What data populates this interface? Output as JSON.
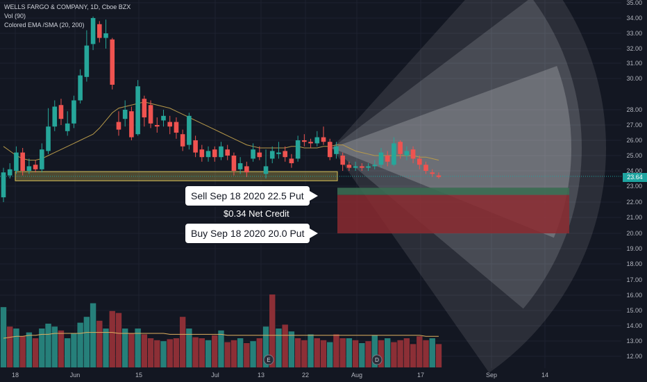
{
  "header": {
    "symbol_line": "WELLS FARGO & COMPANY, 1D, Cboe BZX",
    "volume_line": "Vol (90)",
    "indicator_line": "Colored EMA /SMA (20, 200)"
  },
  "annotations": {
    "sell": "Sell Sep 18 2020 22.5 Put",
    "credit": "$0.34 Net Credit",
    "buy": "Buy Sep 18 2020 20.0 Put"
  },
  "last_price": "23.64",
  "colors": {
    "background": "#131722",
    "up": "#26a69a",
    "down": "#ef5350",
    "up_volume": "#26807a",
    "down_volume": "#8c2f36",
    "ma": "#b89a4a",
    "support_zone": "#d8c15a",
    "sell_zone": "#3b6b52",
    "buy_zone": "#8b2a30"
  },
  "chart_data": {
    "type": "candlestick",
    "y_axis_ticks": [
      "35.00",
      "34.00",
      "33.00",
      "32.00",
      "31.00",
      "30.00",
      "28.00",
      "27.00",
      "26.00",
      "25.00",
      "24.00",
      "23.00",
      "22.00",
      "21.00",
      "20.00",
      "19.00",
      "18.00",
      "17.00",
      "16.00",
      "15.00",
      "14.00",
      "13.00",
      "12.00"
    ],
    "x_axis_ticks": [
      "18",
      "Jun",
      "15",
      "Jul",
      "13",
      "22",
      "Aug",
      "17",
      "Sep",
      "14"
    ],
    "event_markers": [
      "E",
      "D"
    ],
    "moving_average": [
      25.6,
      25.3,
      25.0,
      24.8,
      24.7,
      24.7,
      24.8,
      25.0,
      25.2,
      25.4,
      25.6,
      25.8,
      26.0,
      26.2,
      26.4,
      26.8,
      27.3,
      27.8,
      28.1,
      28.2,
      28.3,
      28.4,
      28.5,
      28.4,
      28.3,
      28.2,
      28.1,
      27.9,
      27.7,
      27.5,
      27.3,
      27.1,
      26.9,
      26.7,
      26.5,
      26.3,
      26.1,
      25.9,
      25.7,
      25.6,
      25.5,
      25.5,
      25.5,
      25.5,
      25.5,
      25.6,
      25.6,
      25.5,
      25.5,
      25.5,
      25.6,
      25.6,
      25.7,
      25.7,
      25.5,
      25.3,
      25.2,
      25.1,
      25.0,
      25.0,
      25.0,
      25.0,
      25.0,
      25.0,
      25.0,
      24.9,
      24.9,
      24.8,
      24.7
    ],
    "candles": [
      {
        "o": 22.3,
        "c": 23.9,
        "h": 24.2,
        "l": 22.0
      },
      {
        "o": 23.7,
        "c": 24.1,
        "h": 24.5,
        "l": 23.5
      },
      {
        "o": 24.0,
        "c": 25.2,
        "h": 25.6,
        "l": 23.8
      },
      {
        "o": 25.2,
        "c": 24.0,
        "h": 25.5,
        "l": 23.7
      },
      {
        "o": 24.0,
        "c": 24.3,
        "h": 24.8,
        "l": 23.8
      },
      {
        "o": 24.4,
        "c": 24.1,
        "h": 24.7,
        "l": 23.9
      },
      {
        "o": 24.1,
        "c": 25.4,
        "h": 25.8,
        "l": 23.9
      },
      {
        "o": 25.3,
        "c": 26.9,
        "h": 28.1,
        "l": 25.1
      },
      {
        "o": 26.9,
        "c": 28.2,
        "h": 28.6,
        "l": 26.6
      },
      {
        "o": 28.3,
        "c": 27.4,
        "h": 28.7,
        "l": 27.0
      },
      {
        "o": 26.6,
        "c": 27.1,
        "h": 27.9,
        "l": 26.3
      },
      {
        "o": 27.1,
        "c": 28.6,
        "h": 28.9,
        "l": 26.8
      },
      {
        "o": 28.6,
        "c": 30.2,
        "h": 30.6,
        "l": 28.4
      },
      {
        "o": 30.1,
        "c": 32.2,
        "h": 33.2,
        "l": 29.8
      },
      {
        "o": 32.3,
        "c": 34.0,
        "h": 34.1,
        "l": 31.9
      },
      {
        "o": 33.6,
        "c": 32.7,
        "h": 33.8,
        "l": 32.4
      },
      {
        "o": 32.7,
        "c": 33.0,
        "h": 33.9,
        "l": 32.0
      },
      {
        "o": 32.6,
        "c": 29.6,
        "h": 32.7,
        "l": 29.3
      },
      {
        "o": 27.2,
        "c": 26.7,
        "h": 27.9,
        "l": 26.3
      },
      {
        "o": 27.4,
        "c": 28.0,
        "h": 28.6,
        "l": 26.9
      },
      {
        "o": 27.9,
        "c": 26.2,
        "h": 28.2,
        "l": 26.0
      },
      {
        "o": 26.4,
        "c": 29.5,
        "h": 29.9,
        "l": 26.3
      },
      {
        "o": 28.7,
        "c": 27.5,
        "h": 28.9,
        "l": 26.9
      },
      {
        "o": 28.3,
        "c": 27.1,
        "h": 28.6,
        "l": 26.8
      },
      {
        "o": 27.0,
        "c": 26.9,
        "h": 27.5,
        "l": 26.5
      },
      {
        "o": 27.3,
        "c": 27.6,
        "h": 28.0,
        "l": 26.9
      },
      {
        "o": 27.2,
        "c": 26.9,
        "h": 27.6,
        "l": 26.4
      },
      {
        "o": 27.2,
        "c": 26.5,
        "h": 27.5,
        "l": 26.1
      },
      {
        "o": 26.4,
        "c": 25.6,
        "h": 26.7,
        "l": 25.3
      },
      {
        "o": 25.7,
        "c": 27.6,
        "h": 27.8,
        "l": 25.4
      },
      {
        "o": 26.0,
        "c": 25.2,
        "h": 26.3,
        "l": 24.9
      },
      {
        "o": 25.4,
        "c": 24.9,
        "h": 25.7,
        "l": 24.6
      },
      {
        "o": 24.9,
        "c": 25.3,
        "h": 25.6,
        "l": 24.6
      },
      {
        "o": 25.4,
        "c": 24.9,
        "h": 25.6,
        "l": 24.6
      },
      {
        "o": 24.9,
        "c": 25.6,
        "h": 25.9,
        "l": 24.7
      },
      {
        "o": 25.4,
        "c": 25.0,
        "h": 25.7,
        "l": 24.7
      },
      {
        "o": 25.0,
        "c": 24.0,
        "h": 25.2,
        "l": 23.7
      },
      {
        "o": 24.1,
        "c": 24.5,
        "h": 24.9,
        "l": 23.8
      },
      {
        "o": 24.3,
        "c": 23.9,
        "h": 24.6,
        "l": 23.6
      },
      {
        "o": 24.8,
        "c": 25.4,
        "h": 25.8,
        "l": 24.6
      },
      {
        "o": 25.2,
        "c": 24.9,
        "h": 25.6,
        "l": 24.7
      },
      {
        "o": 23.8,
        "c": 24.3,
        "h": 25.4,
        "l": 23.5
      },
      {
        "o": 24.8,
        "c": 25.3,
        "h": 25.6,
        "l": 24.5
      },
      {
        "o": 25.1,
        "c": 25.2,
        "h": 25.9,
        "l": 24.8
      },
      {
        "o": 25.3,
        "c": 24.9,
        "h": 25.6,
        "l": 24.6
      },
      {
        "o": 24.8,
        "c": 24.5,
        "h": 25.1,
        "l": 24.2
      },
      {
        "o": 24.8,
        "c": 26.0,
        "h": 26.3,
        "l": 24.6
      },
      {
        "o": 26.0,
        "c": 25.9,
        "h": 26.4,
        "l": 25.6
      },
      {
        "o": 25.9,
        "c": 25.8,
        "h": 26.1,
        "l": 25.5
      },
      {
        "o": 25.8,
        "c": 26.2,
        "h": 26.6,
        "l": 25.6
      },
      {
        "o": 26.2,
        "c": 25.9,
        "h": 26.9,
        "l": 25.7
      },
      {
        "o": 25.9,
        "c": 24.9,
        "h": 26.1,
        "l": 24.7
      },
      {
        "o": 25.1,
        "c": 25.6,
        "h": 25.9,
        "l": 24.8
      },
      {
        "o": 25.0,
        "c": 24.4,
        "h": 25.2,
        "l": 24.0
      },
      {
        "o": 24.4,
        "c": 24.2,
        "h": 24.6,
        "l": 24.0
      },
      {
        "o": 24.2,
        "c": 24.3,
        "h": 24.6,
        "l": 24.0
      },
      {
        "o": 24.3,
        "c": 24.2,
        "h": 24.5,
        "l": 24.0
      },
      {
        "o": 24.2,
        "c": 24.3,
        "h": 24.5,
        "l": 24.0
      },
      {
        "o": 24.3,
        "c": 24.4,
        "h": 24.7,
        "l": 24.1
      },
      {
        "o": 24.4,
        "c": 25.2,
        "h": 25.5,
        "l": 24.2
      },
      {
        "o": 25.0,
        "c": 24.6,
        "h": 25.3,
        "l": 24.3
      },
      {
        "o": 24.4,
        "c": 25.8,
        "h": 26.2,
        "l": 24.3
      },
      {
        "o": 25.9,
        "c": 25.1,
        "h": 26.0,
        "l": 24.8
      },
      {
        "o": 25.0,
        "c": 25.3,
        "h": 25.6,
        "l": 24.7
      },
      {
        "o": 25.4,
        "c": 24.8,
        "h": 25.6,
        "l": 24.5
      },
      {
        "o": 24.8,
        "c": 24.4,
        "h": 25.0,
        "l": 24.1
      },
      {
        "o": 24.4,
        "c": 24.0,
        "h": 24.6,
        "l": 23.8
      },
      {
        "o": 23.9,
        "c": 23.8,
        "h": 24.1,
        "l": 23.6
      },
      {
        "o": 23.7,
        "c": 23.6,
        "h": 23.9,
        "l": 23.5
      }
    ],
    "volume": [
      {
        "v": 0.62,
        "up": true
      },
      {
        "v": 0.42,
        "up": false
      },
      {
        "v": 0.4,
        "up": true
      },
      {
        "v": 0.32,
        "up": false
      },
      {
        "v": 0.36,
        "up": true
      },
      {
        "v": 0.3,
        "up": false
      },
      {
        "v": 0.4,
        "up": true
      },
      {
        "v": 0.45,
        "up": true
      },
      {
        "v": 0.42,
        "up": true
      },
      {
        "v": 0.38,
        "up": false
      },
      {
        "v": 0.3,
        "up": true
      },
      {
        "v": 0.35,
        "up": true
      },
      {
        "v": 0.46,
        "up": true
      },
      {
        "v": 0.52,
        "up": true
      },
      {
        "v": 0.66,
        "up": true
      },
      {
        "v": 0.48,
        "up": false
      },
      {
        "v": 0.4,
        "up": true
      },
      {
        "v": 0.58,
        "up": false
      },
      {
        "v": 0.56,
        "up": false
      },
      {
        "v": 0.4,
        "up": true
      },
      {
        "v": 0.35,
        "up": false
      },
      {
        "v": 0.4,
        "up": true
      },
      {
        "v": 0.34,
        "up": false
      },
      {
        "v": 0.3,
        "up": false
      },
      {
        "v": 0.28,
        "up": false
      },
      {
        "v": 0.27,
        "up": true
      },
      {
        "v": 0.29,
        "up": false
      },
      {
        "v": 0.3,
        "up": false
      },
      {
        "v": 0.52,
        "up": false
      },
      {
        "v": 0.4,
        "up": true
      },
      {
        "v": 0.31,
        "up": false
      },
      {
        "v": 0.3,
        "up": false
      },
      {
        "v": 0.28,
        "up": true
      },
      {
        "v": 0.33,
        "up": false
      },
      {
        "v": 0.38,
        "up": true
      },
      {
        "v": 0.26,
        "up": false
      },
      {
        "v": 0.28,
        "up": false
      },
      {
        "v": 0.3,
        "up": true
      },
      {
        "v": 0.25,
        "up": false
      },
      {
        "v": 0.27,
        "up": true
      },
      {
        "v": 0.3,
        "up": false
      },
      {
        "v": 0.42,
        "up": true
      },
      {
        "v": 0.75,
        "up": false
      },
      {
        "v": 0.4,
        "up": true
      },
      {
        "v": 0.44,
        "up": false
      },
      {
        "v": 0.37,
        "up": true
      },
      {
        "v": 0.3,
        "up": false
      },
      {
        "v": 0.28,
        "up": false
      },
      {
        "v": 0.34,
        "up": true
      },
      {
        "v": 0.3,
        "up": false
      },
      {
        "v": 0.28,
        "up": false
      },
      {
        "v": 0.26,
        "up": true
      },
      {
        "v": 0.34,
        "up": false
      },
      {
        "v": 0.3,
        "up": false
      },
      {
        "v": 0.3,
        "up": true
      },
      {
        "v": 0.28,
        "up": false
      },
      {
        "v": 0.25,
        "up": true
      },
      {
        "v": 0.27,
        "up": false
      },
      {
        "v": 0.33,
        "up": true
      },
      {
        "v": 0.28,
        "up": false
      },
      {
        "v": 0.3,
        "up": true
      },
      {
        "v": 0.26,
        "up": false
      },
      {
        "v": 0.28,
        "up": false
      },
      {
        "v": 0.3,
        "up": false
      },
      {
        "v": 0.24,
        "up": false
      },
      {
        "v": 0.32,
        "up": false
      },
      {
        "v": 0.28,
        "up": false
      },
      {
        "v": 0.3,
        "up": true
      },
      {
        "v": 0.24,
        "up": false
      }
    ],
    "volume_average": [
      0.3,
      0.31,
      0.32,
      0.32,
      0.33,
      0.33,
      0.34,
      0.34,
      0.35,
      0.35,
      0.35,
      0.35,
      0.35,
      0.36,
      0.36,
      0.36,
      0.36,
      0.36,
      0.35,
      0.35,
      0.35,
      0.35,
      0.35,
      0.35,
      0.35,
      0.35,
      0.34,
      0.34,
      0.34,
      0.34,
      0.34,
      0.34,
      0.34,
      0.34,
      0.34,
      0.33,
      0.33,
      0.33,
      0.33,
      0.33,
      0.33,
      0.33,
      0.33,
      0.33,
      0.33,
      0.33,
      0.33,
      0.33,
      0.33,
      0.33,
      0.33,
      0.33,
      0.33,
      0.33,
      0.33,
      0.33,
      0.33,
      0.33,
      0.33,
      0.33,
      0.33,
      0.33,
      0.33,
      0.33,
      0.33,
      0.33,
      0.32,
      0.32,
      0.32
    ]
  }
}
